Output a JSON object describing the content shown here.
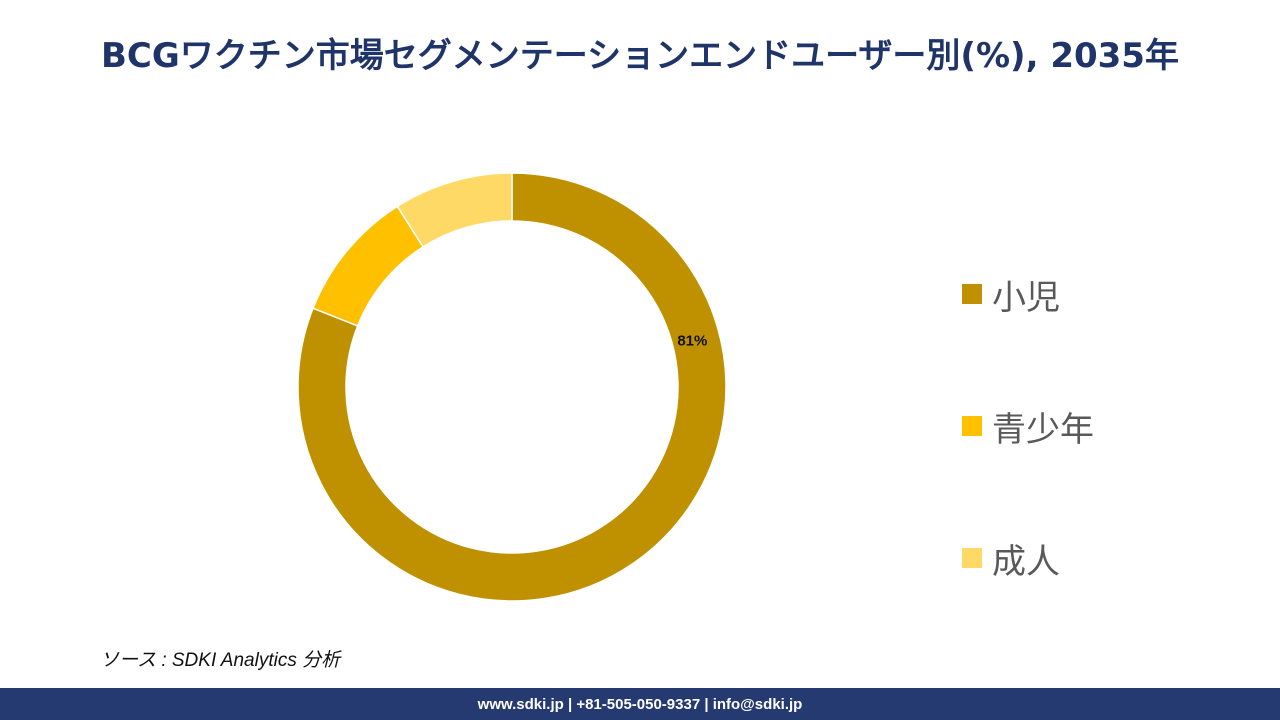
{
  "title": "BCGワクチン市場セグメンテーションエンドユーザー別(%), 2035年",
  "chart_data": {
    "type": "pie",
    "style": "donut",
    "categories": [
      "小児",
      "青少年",
      "成人"
    ],
    "values": [
      81,
      10,
      9
    ],
    "data_labels": [
      "81%",
      "",
      ""
    ],
    "colors": [
      "#bf9000",
      "#ffc000",
      "#ffd966"
    ],
    "legend": "right"
  },
  "source": "ソース : SDKI Analytics 分析",
  "footer": "www.sdki.jp | +81-505-050-9337 | info@sdki.jp"
}
